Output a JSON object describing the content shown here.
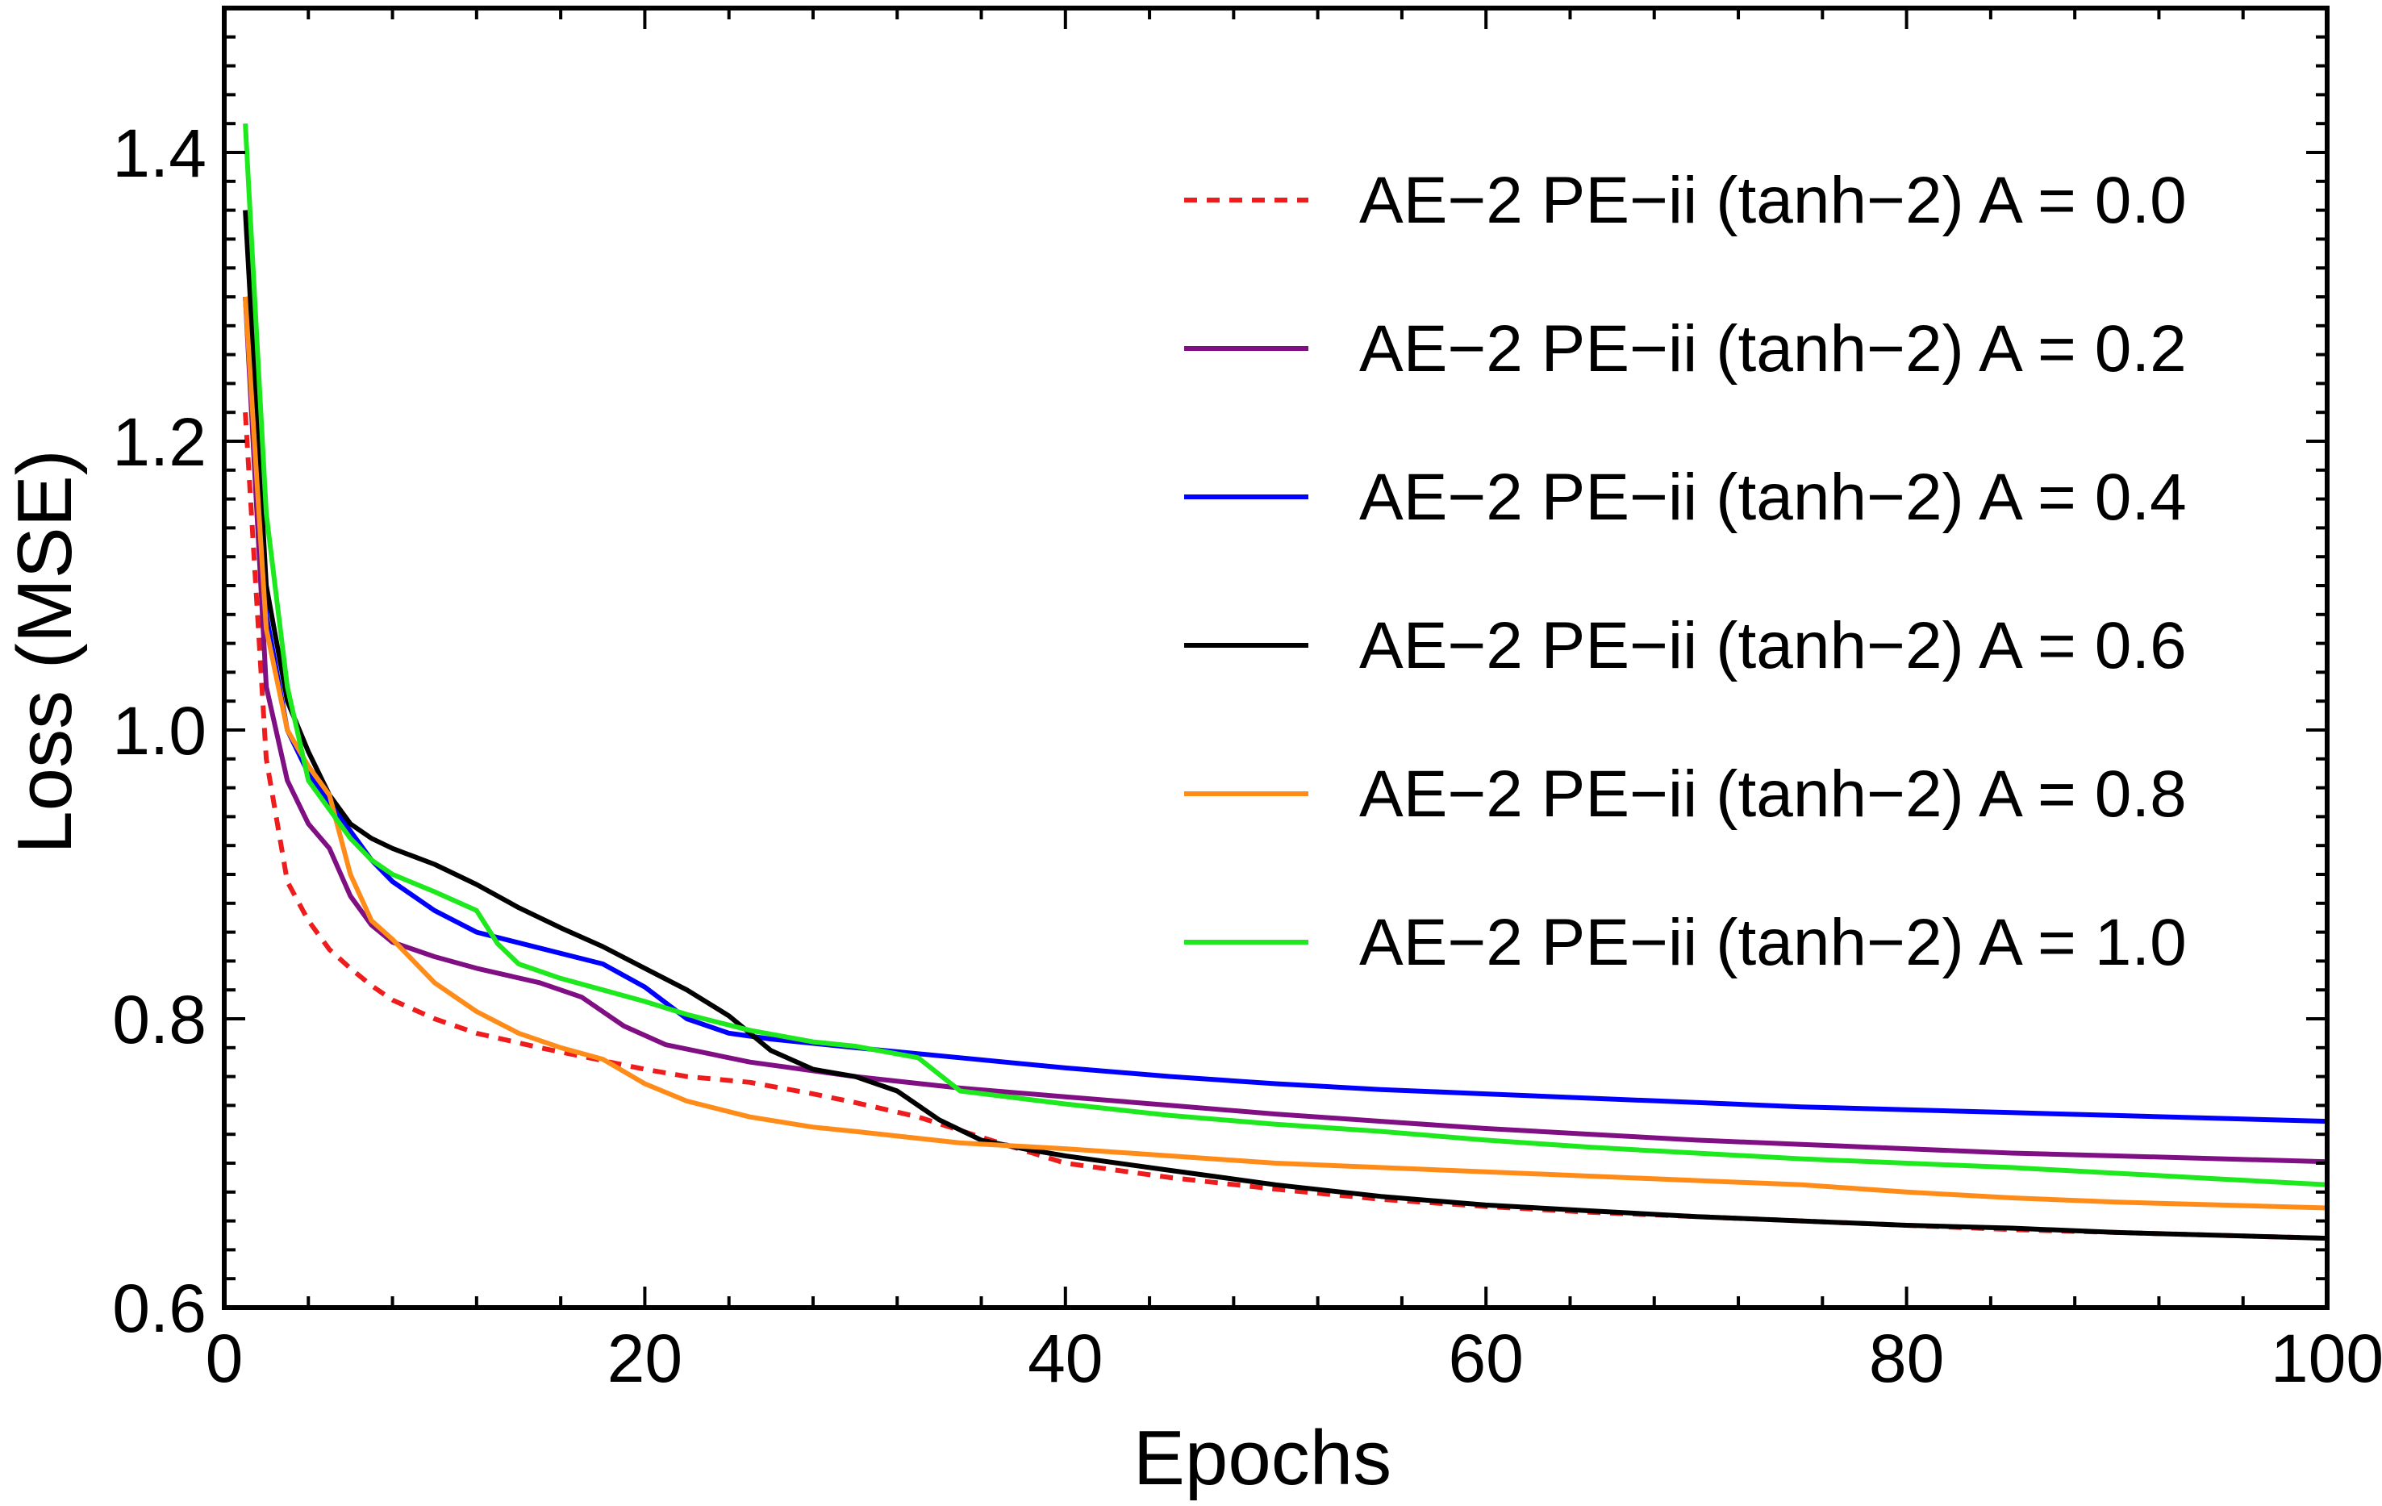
{
  "chart_data": {
    "type": "line",
    "title": "",
    "xlabel": "Epochs",
    "ylabel": "Loss (MSE)",
    "xlim": [
      0,
      100
    ],
    "ylim": [
      0.6,
      1.5
    ],
    "xticks": [
      0,
      20,
      40,
      60,
      80,
      100
    ],
    "yticks": [
      0.6,
      0.8,
      1.0,
      1.2,
      1.4
    ],
    "ytick_labels": [
      "0.6",
      "0.8",
      "1.0",
      "1.2",
      "1.4"
    ],
    "grid": false,
    "legend_position": "top-right",
    "series": [
      {
        "name": "AE−2 PE−ii (tanh−2) A = 0.0",
        "color": "#ee1c1c",
        "dashed": true,
        "x": [
          1,
          2,
          3,
          4,
          5,
          6,
          7,
          8,
          10,
          12,
          15,
          18,
          20,
          22,
          25,
          28,
          30,
          33,
          36,
          40,
          45,
          50,
          55,
          60,
          65,
          70,
          75,
          80,
          85,
          90,
          95,
          100
        ],
        "y": [
          1.22,
          0.98,
          0.895,
          0.868,
          0.848,
          0.835,
          0.823,
          0.813,
          0.8,
          0.79,
          0.78,
          0.771,
          0.765,
          0.76,
          0.756,
          0.748,
          0.742,
          0.732,
          0.718,
          0.7,
          0.69,
          0.682,
          0.675,
          0.67,
          0.666,
          0.663,
          0.66,
          0.657,
          0.654,
          0.652,
          0.65,
          0.648
        ]
      },
      {
        "name": "AE−2 PE−ii (tanh−2) A = 0.2",
        "color": "#7f0f83",
        "dashed": false,
        "x": [
          1,
          2,
          3,
          4,
          5,
          6,
          7,
          8,
          10,
          12,
          15,
          17,
          19,
          21,
          25,
          30,
          35,
          40,
          45,
          50,
          55,
          60,
          65,
          70,
          75,
          80,
          85,
          90,
          95,
          100
        ],
        "y": [
          1.3,
          1.03,
          0.965,
          0.935,
          0.918,
          0.885,
          0.865,
          0.853,
          0.843,
          0.835,
          0.825,
          0.815,
          0.795,
          0.782,
          0.77,
          0.76,
          0.752,
          0.746,
          0.74,
          0.734,
          0.729,
          0.724,
          0.72,
          0.716,
          0.713,
          0.71,
          0.707,
          0.705,
          0.703,
          0.701
        ]
      },
      {
        "name": "AE−2 PE−ii (tanh−2) A = 0.4",
        "color": "#0000ff",
        "dashed": false,
        "x": [
          1,
          2,
          3,
          4,
          5,
          6,
          7,
          8,
          10,
          12,
          15,
          18,
          20,
          22,
          24,
          26,
          30,
          35,
          40,
          45,
          50,
          55,
          60,
          65,
          70,
          75,
          80,
          85,
          90,
          95,
          100
        ],
        "y": [
          1.3,
          1.08,
          1.0,
          0.97,
          0.95,
          0.93,
          0.91,
          0.895,
          0.875,
          0.86,
          0.849,
          0.838,
          0.822,
          0.8,
          0.79,
          0.786,
          0.78,
          0.773,
          0.766,
          0.76,
          0.755,
          0.751,
          0.748,
          0.745,
          0.742,
          0.739,
          0.737,
          0.735,
          0.733,
          0.731,
          0.729
        ]
      },
      {
        "name": "AE−2 PE−ii (tanh−2) A = 0.6",
        "color": "#000000",
        "dashed": false,
        "x": [
          1,
          2,
          3,
          4,
          5,
          6,
          7,
          8,
          10,
          12,
          14,
          16,
          18,
          20,
          22,
          24,
          26,
          28,
          30,
          32,
          34,
          36,
          38,
          40,
          45,
          50,
          55,
          60,
          65,
          70,
          75,
          80,
          85,
          90,
          95,
          100
        ],
        "y": [
          1.36,
          1.1,
          1.02,
          0.985,
          0.955,
          0.935,
          0.925,
          0.918,
          0.907,
          0.893,
          0.877,
          0.863,
          0.85,
          0.835,
          0.82,
          0.802,
          0.778,
          0.765,
          0.76,
          0.75,
          0.73,
          0.716,
          0.71,
          0.705,
          0.695,
          0.685,
          0.677,
          0.671,
          0.667,
          0.663,
          0.66,
          0.657,
          0.655,
          0.652,
          0.65,
          0.648
        ]
      },
      {
        "name": "AE−2 PE−ii (tanh−2) A = 0.8",
        "color": "#ff8c19",
        "dashed": false,
        "x": [
          1,
          2,
          3,
          4,
          5,
          6,
          7,
          8,
          10,
          12,
          14,
          16,
          18,
          20,
          22,
          25,
          28,
          30,
          35,
          40,
          45,
          50,
          55,
          60,
          65,
          70,
          75,
          80,
          85,
          90,
          95,
          100
        ],
        "y": [
          1.3,
          1.07,
          1.0,
          0.975,
          0.955,
          0.9,
          0.868,
          0.855,
          0.825,
          0.805,
          0.79,
          0.78,
          0.772,
          0.755,
          0.743,
          0.732,
          0.725,
          0.722,
          0.714,
          0.71,
          0.705,
          0.7,
          0.697,
          0.694,
          0.691,
          0.688,
          0.685,
          0.68,
          0.676,
          0.673,
          0.671,
          0.669
        ]
      },
      {
        "name": "AE−2 PE−ii (tanh−2) A = 1.0",
        "color": "#1ee81e",
        "dashed": false,
        "x": [
          1,
          2,
          3,
          4,
          5,
          6,
          7,
          8,
          10,
          12,
          13,
          14,
          16,
          18,
          20,
          22,
          25,
          28,
          30,
          33,
          35,
          40,
          45,
          50,
          55,
          60,
          65,
          70,
          75,
          80,
          85,
          90,
          95,
          100
        ],
        "y": [
          1.42,
          1.15,
          1.03,
          0.965,
          0.945,
          0.925,
          0.91,
          0.9,
          0.888,
          0.875,
          0.852,
          0.838,
          0.828,
          0.82,
          0.812,
          0.803,
          0.792,
          0.784,
          0.781,
          0.773,
          0.75,
          0.741,
          0.733,
          0.727,
          0.722,
          0.716,
          0.711,
          0.707,
          0.703,
          0.7,
          0.697,
          0.693,
          0.689,
          0.685
        ]
      }
    ]
  }
}
